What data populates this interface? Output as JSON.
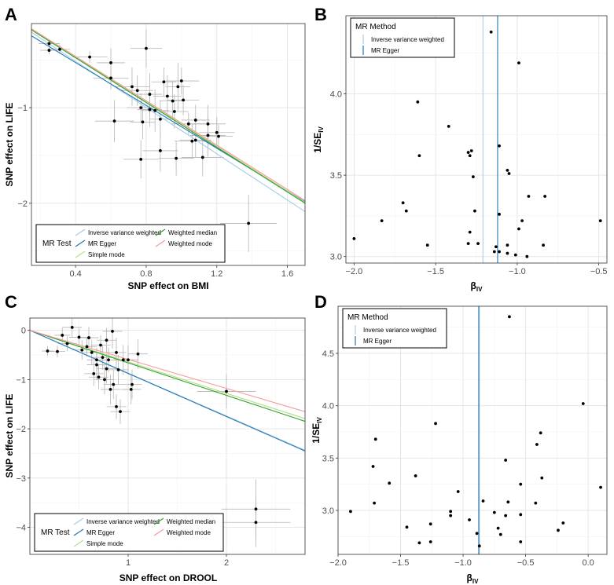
{
  "colors": {
    "ivw": "#a6cee3",
    "egger": "#1f78b4",
    "simple_mode": "#b2df8a",
    "weighted_median": "#33a02c",
    "weighted_mode": "#fb9a99",
    "points": "#000000",
    "errorbars": "#b3b3b3"
  },
  "chart_data": [
    {
      "panel": "A",
      "type": "scatter",
      "xlabel": "SNP effect on BMI",
      "ylabel": "SNP effect on LIFE",
      "xlim": [
        0.15,
        1.7
      ],
      "ylim": [
        -2.65,
        -0.12
      ],
      "xticks": [
        0.4,
        0.8,
        1.2,
        1.6
      ],
      "xtick_labels": [
        "0.4",
        "0.8",
        "1.2",
        "1.6"
      ],
      "yticks": [
        -1,
        -2
      ],
      "ytick_labels": [
        "−1",
        "−2"
      ],
      "legend": {
        "title": "MR Test",
        "position": "bottom-left",
        "entries": [
          {
            "label": "Inverse variance weighted",
            "color_key": "ivw"
          },
          {
            "label": "MR Egger",
            "color_key": "egger"
          },
          {
            "label": "Simple mode",
            "color_key": "simple_mode"
          },
          {
            "label": "Weighted median",
            "color_key": "weighted_median"
          },
          {
            "label": "Weighted mode",
            "color_key": "weighted_mode"
          }
        ]
      },
      "lines": [
        {
          "method": "Inverse variance weighted",
          "color_key": "ivw",
          "intercept": -0.03,
          "slope": -1.21
        },
        {
          "method": "MR Egger",
          "color_key": "egger",
          "intercept": -0.08,
          "slope": -1.12
        },
        {
          "method": "Simple mode",
          "color_key": "simple_mode",
          "intercept": 0.0,
          "slope": -1.17
        },
        {
          "method": "Weighted median",
          "color_key": "weighted_median",
          "intercept": -0.01,
          "slope": -1.17
        },
        {
          "method": "Weighted mode",
          "color_key": "weighted_mode",
          "intercept": 0.0,
          "slope": -1.16
        }
      ],
      "points": [
        {
          "x": 0.25,
          "y": -0.33,
          "xerr": 0.06,
          "yerr": 0.04
        },
        {
          "x": 0.25,
          "y": -0.4,
          "xerr": 0.05,
          "yerr": 0.04
        },
        {
          "x": 0.31,
          "y": -0.39,
          "xerr": 0.06,
          "yerr": 0.05
        },
        {
          "x": 0.48,
          "y": -0.47,
          "xerr": 0.1,
          "yerr": 0.06
        },
        {
          "x": 0.6,
          "y": -0.53,
          "xerr": 0.08,
          "yerr": 0.15
        },
        {
          "x": 0.6,
          "y": -0.69,
          "xerr": 0.1,
          "yerr": 0.12
        },
        {
          "x": 0.62,
          "y": -1.14,
          "xerr": 0.11,
          "yerr": 0.22
        },
        {
          "x": 0.8,
          "y": -0.38,
          "xerr": 0.09,
          "yerr": 0.2
        },
        {
          "x": 0.72,
          "y": -0.78,
          "xerr": 0.1,
          "yerr": 0.2
        },
        {
          "x": 0.75,
          "y": -0.82,
          "xerr": 0.09,
          "yerr": 0.16
        },
        {
          "x": 0.77,
          "y": -1.0,
          "xerr": 0.08,
          "yerr": 0.15
        },
        {
          "x": 0.78,
          "y": -1.15,
          "xerr": 0.07,
          "yerr": 0.18
        },
        {
          "x": 0.82,
          "y": -0.86,
          "xerr": 0.07,
          "yerr": 0.22
        },
        {
          "x": 0.82,
          "y": -1.02,
          "xerr": 0.07,
          "yerr": 0.18
        },
        {
          "x": 0.85,
          "y": -1.03,
          "xerr": 0.08,
          "yerr": 0.22
        },
        {
          "x": 0.88,
          "y": -1.12,
          "xerr": 0.06,
          "yerr": 0.2
        },
        {
          "x": 0.9,
          "y": -0.73,
          "xerr": 0.07,
          "yerr": 0.15
        },
        {
          "x": 0.92,
          "y": -0.88,
          "xerr": 0.08,
          "yerr": 0.22
        },
        {
          "x": 0.95,
          "y": -0.93,
          "xerr": 0.07,
          "yerr": 0.2
        },
        {
          "x": 0.96,
          "y": -1.04,
          "xerr": 0.08,
          "yerr": 0.18
        },
        {
          "x": 0.98,
          "y": -0.78,
          "xerr": 0.07,
          "yerr": 0.25
        },
        {
          "x": 1.0,
          "y": -0.72,
          "xerr": 0.1,
          "yerr": 0.14
        },
        {
          "x": 1.01,
          "y": -0.92,
          "xerr": 0.09,
          "yerr": 0.16
        },
        {
          "x": 1.04,
          "y": -1.17,
          "xerr": 0.1,
          "yerr": 0.12
        },
        {
          "x": 1.06,
          "y": -1.35,
          "xerr": 0.1,
          "yerr": 0.18
        },
        {
          "x": 1.08,
          "y": -1.13,
          "xerr": 0.08,
          "yerr": 0.16
        },
        {
          "x": 1.08,
          "y": -1.34,
          "xerr": 0.09,
          "yerr": 0.18
        },
        {
          "x": 1.12,
          "y": -1.52,
          "xerr": 0.12,
          "yerr": 0.2
        },
        {
          "x": 0.88,
          "y": -1.45,
          "xerr": 0.1,
          "yerr": 0.22
        },
        {
          "x": 0.77,
          "y": -1.54,
          "xerr": 0.1,
          "yerr": 0.2
        },
        {
          "x": 0.97,
          "y": -1.53,
          "xerr": 0.1,
          "yerr": 0.18
        },
        {
          "x": 1.15,
          "y": -1.17,
          "xerr": 0.1,
          "yerr": 0.2
        },
        {
          "x": 1.15,
          "y": -1.29,
          "xerr": 0.1,
          "yerr": 0.22
        },
        {
          "x": 1.2,
          "y": -1.26,
          "xerr": 0.1,
          "yerr": 0.16
        },
        {
          "x": 1.21,
          "y": -1.3,
          "xerr": 0.08,
          "yerr": 0.12
        },
        {
          "x": 1.38,
          "y": -2.21,
          "xerr": 0.16,
          "yerr": 0.3
        }
      ]
    },
    {
      "panel": "B",
      "type": "scatter",
      "xlabel": "β",
      "xlabel_sub": "IV",
      "ylabel": "1/SE",
      "ylabel_sub": "IV",
      "xlim": [
        -2.05,
        -0.45
      ],
      "ylim": [
        2.96,
        4.48
      ],
      "xticks": [
        -2.0,
        -1.5,
        -1.0,
        -0.5
      ],
      "xtick_labels": [
        "−2.0",
        "−1.5",
        "−1.0",
        "−0.5"
      ],
      "yticks": [
        3.0,
        3.5,
        4.0
      ],
      "ytick_labels": [
        "3.0",
        "3.5",
        "4.0"
      ],
      "legend": {
        "title": "MR Method",
        "position": "top-left",
        "entries": [
          {
            "label": "Inverse variance weighted",
            "color_key": "ivw"
          },
          {
            "label": "MR Egger",
            "color_key": "egger"
          }
        ]
      },
      "vlines": [
        {
          "method": "Inverse variance weighted",
          "color_key": "ivw",
          "x": -1.21
        },
        {
          "method": "MR Egger",
          "color_key": "egger",
          "x": -1.12
        }
      ],
      "points": [
        {
          "x": -1.16,
          "y": 4.38
        },
        {
          "x": -0.99,
          "y": 4.19
        },
        {
          "x": -1.61,
          "y": 3.95
        },
        {
          "x": -1.42,
          "y": 3.8
        },
        {
          "x": -1.11,
          "y": 3.68
        },
        {
          "x": -1.3,
          "y": 3.64
        },
        {
          "x": -1.28,
          "y": 3.65
        },
        {
          "x": -1.29,
          "y": 3.62
        },
        {
          "x": -1.6,
          "y": 3.62
        },
        {
          "x": -1.06,
          "y": 3.53
        },
        {
          "x": -1.05,
          "y": 3.51
        },
        {
          "x": -1.27,
          "y": 3.49
        },
        {
          "x": -1.7,
          "y": 3.33
        },
        {
          "x": -0.93,
          "y": 3.37
        },
        {
          "x": -0.83,
          "y": 3.37
        },
        {
          "x": -1.68,
          "y": 3.28
        },
        {
          "x": -1.26,
          "y": 3.28
        },
        {
          "x": -1.11,
          "y": 3.26
        },
        {
          "x": -1.83,
          "y": 3.22
        },
        {
          "x": -0.97,
          "y": 3.22
        },
        {
          "x": -0.49,
          "y": 3.22
        },
        {
          "x": -0.99,
          "y": 3.17
        },
        {
          "x": -1.29,
          "y": 3.15
        },
        {
          "x": -2.0,
          "y": 3.11
        },
        {
          "x": -1.24,
          "y": 3.08
        },
        {
          "x": -1.3,
          "y": 3.08
        },
        {
          "x": -1.55,
          "y": 3.07
        },
        {
          "x": -1.13,
          "y": 3.06
        },
        {
          "x": -1.06,
          "y": 3.07
        },
        {
          "x": -0.84,
          "y": 3.07
        },
        {
          "x": -1.14,
          "y": 3.03
        },
        {
          "x": -1.11,
          "y": 3.03
        },
        {
          "x": -1.06,
          "y": 3.02
        },
        {
          "x": -1.01,
          "y": 3.01
        },
        {
          "x": -0.94,
          "y": 3.0
        }
      ]
    },
    {
      "panel": "C",
      "type": "scatter",
      "xlabel": "SNP effect on DROOL",
      "ylabel": "SNP effect on LIFE",
      "xlim": [
        0.0,
        2.8
      ],
      "ylim": [
        -4.55,
        0.25
      ],
      "xticks": [
        1,
        2
      ],
      "xtick_labels": [
        "1",
        "2"
      ],
      "yticks": [
        0,
        -1,
        -2,
        -3,
        -4
      ],
      "ytick_labels": [
        "0",
        "−1",
        "−2",
        "−3",
        "−4"
      ],
      "legend": {
        "title": "MR Test",
        "position": "bottom-left",
        "entries": [
          {
            "label": "Inverse variance weighted",
            "color_key": "ivw"
          },
          {
            "label": "MR Egger",
            "color_key": "egger"
          },
          {
            "label": "Simple mode",
            "color_key": "simple_mode"
          },
          {
            "label": "Weighted median",
            "color_key": "weighted_median"
          },
          {
            "label": "Weighted mode",
            "color_key": "weighted_mode"
          }
        ]
      },
      "lines": [
        {
          "method": "Inverse variance weighted",
          "color_key": "ivw",
          "intercept": 0.0,
          "slope": -0.87
        },
        {
          "method": "MR Egger",
          "color_key": "egger",
          "intercept": 0.0,
          "slope": -0.875
        },
        {
          "method": "Simple mode",
          "color_key": "simple_mode",
          "intercept": 0.0,
          "slope": -0.64
        },
        {
          "method": "Weighted median",
          "color_key": "weighted_median",
          "intercept": 0.0,
          "slope": -0.66
        },
        {
          "method": "Weighted mode",
          "color_key": "weighted_mode",
          "intercept": 0.0,
          "slope": -0.59
        }
      ],
      "points": [
        {
          "x": 0.18,
          "y": -0.42,
          "xerr": 0.06,
          "yerr": 0.1
        },
        {
          "x": 0.28,
          "y": -0.43,
          "xerr": 0.08,
          "yerr": 0.12
        },
        {
          "x": 0.33,
          "y": -0.1,
          "xerr": 0.08,
          "yerr": 0.15
        },
        {
          "x": 0.38,
          "y": -0.27,
          "xerr": 0.1,
          "yerr": 0.15
        },
        {
          "x": 0.43,
          "y": 0.06,
          "xerr": 0.1,
          "yerr": 0.2
        },
        {
          "x": 0.5,
          "y": -0.14,
          "xerr": 0.1,
          "yerr": 0.18
        },
        {
          "x": 0.53,
          "y": -0.4,
          "xerr": 0.1,
          "yerr": 0.2
        },
        {
          "x": 0.58,
          "y": -0.33,
          "xerr": 0.1,
          "yerr": 0.2
        },
        {
          "x": 0.6,
          "y": -0.15,
          "xerr": 0.1,
          "yerr": 0.22
        },
        {
          "x": 0.63,
          "y": -0.45,
          "xerr": 0.1,
          "yerr": 0.25
        },
        {
          "x": 0.65,
          "y": -0.88,
          "xerr": 0.1,
          "yerr": 0.25
        },
        {
          "x": 0.68,
          "y": -0.6,
          "xerr": 0.1,
          "yerr": 0.25
        },
        {
          "x": 0.68,
          "y": -0.7,
          "xerr": 0.1,
          "yerr": 0.3
        },
        {
          "x": 0.7,
          "y": -0.95,
          "xerr": 0.1,
          "yerr": 0.25
        },
        {
          "x": 0.72,
          "y": -0.3,
          "xerr": 0.1,
          "yerr": 0.2
        },
        {
          "x": 0.74,
          "y": -0.55,
          "xerr": 0.1,
          "yerr": 0.25
        },
        {
          "x": 0.76,
          "y": -1.0,
          "xerr": 0.1,
          "yerr": 0.3
        },
        {
          "x": 0.78,
          "y": -0.2,
          "xerr": 0.1,
          "yerr": 0.25
        },
        {
          "x": 0.78,
          "y": -0.78,
          "xerr": 0.1,
          "yerr": 0.3
        },
        {
          "x": 0.8,
          "y": -0.6,
          "xerr": 0.1,
          "yerr": 0.25
        },
        {
          "x": 0.82,
          "y": -1.2,
          "xerr": 0.1,
          "yerr": 0.3
        },
        {
          "x": 0.84,
          "y": -0.02,
          "xerr": 0.1,
          "yerr": 0.35
        },
        {
          "x": 0.85,
          "y": -1.1,
          "xerr": 0.1,
          "yerr": 0.3
        },
        {
          "x": 0.88,
          "y": -0.45,
          "xerr": 0.1,
          "yerr": 0.3
        },
        {
          "x": 0.88,
          "y": -1.55,
          "xerr": 0.1,
          "yerr": 0.25
        },
        {
          "x": 0.9,
          "y": -0.8,
          "xerr": 0.1,
          "yerr": 0.3
        },
        {
          "x": 0.92,
          "y": -1.65,
          "xerr": 0.1,
          "yerr": 0.25
        },
        {
          "x": 0.95,
          "y": -0.6,
          "xerr": 0.1,
          "yerr": 0.3
        },
        {
          "x": 1.0,
          "y": -0.6,
          "xerr": 0.1,
          "yerr": 0.3
        },
        {
          "x": 1.03,
          "y": -1.2,
          "xerr": 0.1,
          "yerr": 0.3
        },
        {
          "x": 1.04,
          "y": -1.1,
          "xerr": 0.1,
          "yerr": 0.3
        },
        {
          "x": 1.1,
          "y": -0.48,
          "xerr": 0.1,
          "yerr": 0.3
        },
        {
          "x": 2.0,
          "y": -1.24,
          "xerr": 0.3,
          "yerr": 0.35
        },
        {
          "x": 2.3,
          "y": -3.63,
          "xerr": 0.35,
          "yerr": 0.6
        },
        {
          "x": 2.3,
          "y": -3.9,
          "xerr": 0.35,
          "yerr": 0.5
        }
      ]
    },
    {
      "panel": "D",
      "type": "scatter",
      "xlabel": "β",
      "xlabel_sub": "IV",
      "ylabel": "1/SE",
      "ylabel_sub": "IV",
      "xlim": [
        -2.0,
        0.15
      ],
      "ylim": [
        2.58,
        4.95
      ],
      "xticks": [
        -2.0,
        -1.5,
        -1.0,
        -0.5,
        0.0
      ],
      "xtick_labels": [
        "−2.0",
        "−1.5",
        "−1.0",
        "−0.5",
        "0.0"
      ],
      "yticks": [
        3.0,
        3.5,
        4.0,
        4.5
      ],
      "ytick_labels": [
        "3.0",
        "3.5",
        "4.0",
        "4.5"
      ],
      "legend": {
        "title": "MR Method",
        "position": "top-left",
        "entries": [
          {
            "label": "Inverse variance weighted",
            "color_key": "ivw"
          },
          {
            "label": "MR Egger",
            "color_key": "egger"
          }
        ]
      },
      "vlines": [
        {
          "method": "Inverse variance weighted",
          "color_key": "ivw",
          "x": -0.87
        },
        {
          "method": "MR Egger",
          "color_key": "egger",
          "x": -0.875
        }
      ],
      "points": [
        {
          "x": -0.63,
          "y": 4.85
        },
        {
          "x": -0.04,
          "y": 4.02
        },
        {
          "x": -1.22,
          "y": 3.83
        },
        {
          "x": -1.7,
          "y": 3.68
        },
        {
          "x": -0.38,
          "y": 3.74
        },
        {
          "x": -0.41,
          "y": 3.63
        },
        {
          "x": -0.66,
          "y": 3.48
        },
        {
          "x": -1.72,
          "y": 3.42
        },
        {
          "x": -1.38,
          "y": 3.33
        },
        {
          "x": -0.37,
          "y": 3.31
        },
        {
          "x": -1.59,
          "y": 3.26
        },
        {
          "x": -0.54,
          "y": 3.25
        },
        {
          "x": 0.1,
          "y": 3.22
        },
        {
          "x": -1.04,
          "y": 3.18
        },
        {
          "x": -0.84,
          "y": 3.09
        },
        {
          "x": -0.64,
          "y": 3.08
        },
        {
          "x": -0.42,
          "y": 3.07
        },
        {
          "x": -1.71,
          "y": 3.07
        },
        {
          "x": -1.1,
          "y": 2.99
        },
        {
          "x": -1.9,
          "y": 2.99
        },
        {
          "x": -0.75,
          "y": 2.98
        },
        {
          "x": -1.1,
          "y": 2.95
        },
        {
          "x": -0.66,
          "y": 2.95
        },
        {
          "x": -0.54,
          "y": 2.96
        },
        {
          "x": -0.95,
          "y": 2.91
        },
        {
          "x": -1.26,
          "y": 2.87
        },
        {
          "x": -0.2,
          "y": 2.88
        },
        {
          "x": -1.45,
          "y": 2.84
        },
        {
          "x": -0.72,
          "y": 2.83
        },
        {
          "x": -0.24,
          "y": 2.81
        },
        {
          "x": -0.89,
          "y": 2.78
        },
        {
          "x": -0.7,
          "y": 2.77
        },
        {
          "x": -1.35,
          "y": 2.69
        },
        {
          "x": -1.26,
          "y": 2.7
        },
        {
          "x": -0.54,
          "y": 2.7
        },
        {
          "x": -0.87,
          "y": 2.66
        }
      ]
    }
  ]
}
